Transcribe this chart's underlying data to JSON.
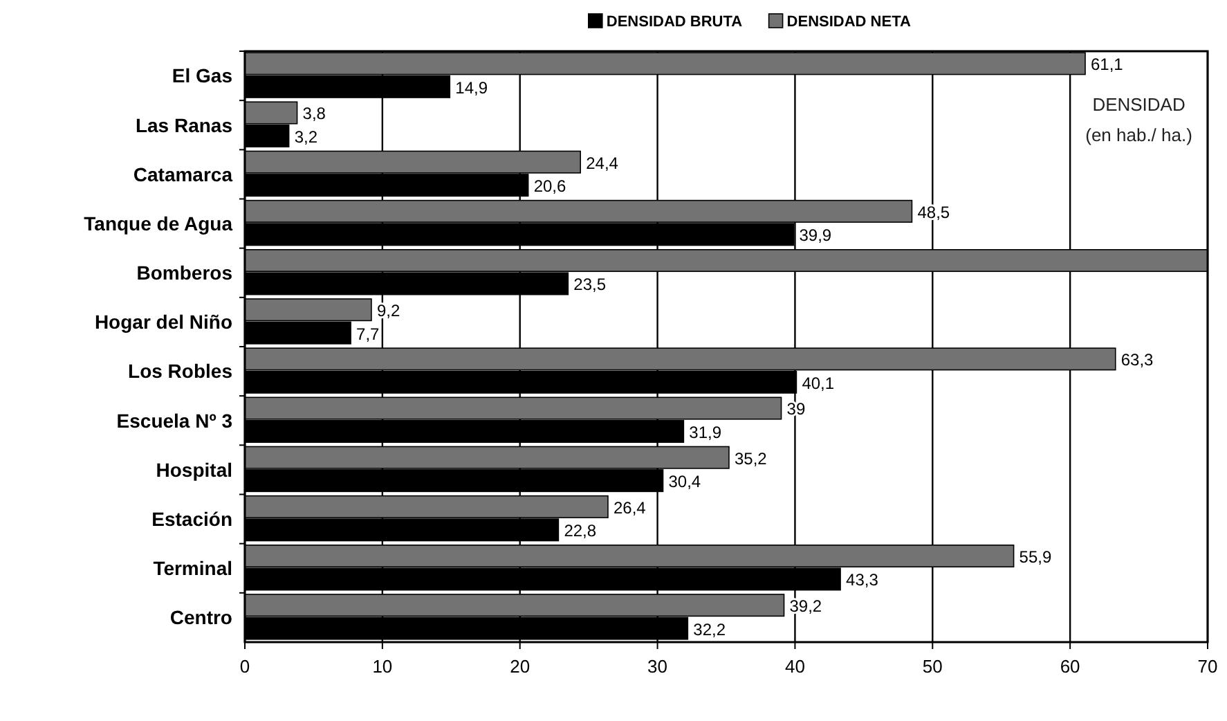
{
  "chart_data": {
    "type": "bar",
    "orientation": "horizontal",
    "categories": [
      "El Gas",
      "Las Ranas",
      "Catamarca",
      "Tanque de Agua",
      "Bomberos",
      "Hogar del Niño",
      "Los Robles",
      "Escuela Nº 3",
      "Hospital",
      "Estación",
      "Terminal",
      "Centro"
    ],
    "series": [
      {
        "name": "DENSIDAD BRUTA",
        "color": "#000000",
        "values": [
          14.9,
          3.2,
          20.6,
          39.9,
          23.5,
          7.7,
          40.1,
          31.9,
          30.4,
          22.8,
          43.3,
          32.2
        ],
        "value_labels": [
          "14,9",
          "3,2",
          "20,6",
          "39,9",
          "23,5",
          "7,7",
          "40,1",
          "31,9",
          "30,4",
          "22,8",
          "43,3",
          "32,2"
        ]
      },
      {
        "name": "DENSIDAD NETA",
        "color": "#737373",
        "values": [
          61.1,
          3.8,
          24.4,
          48.5,
          70,
          9.2,
          63.3,
          39,
          35.2,
          26.4,
          55.9,
          39.2
        ],
        "value_labels": [
          "61,1",
          "3,8",
          "24,4",
          "48,5",
          null,
          "9,2",
          "63,3",
          "39",
          "35,2",
          "26,4",
          "55,9",
          "39,2"
        ]
      }
    ],
    "xlim": [
      0,
      70
    ],
    "xticks": [
      0,
      10,
      20,
      30,
      40,
      50,
      60,
      70
    ],
    "grid": "x",
    "legend": "top",
    "annotations": [
      "DENSIDAD",
      "(en hab./ ha.)"
    ]
  }
}
